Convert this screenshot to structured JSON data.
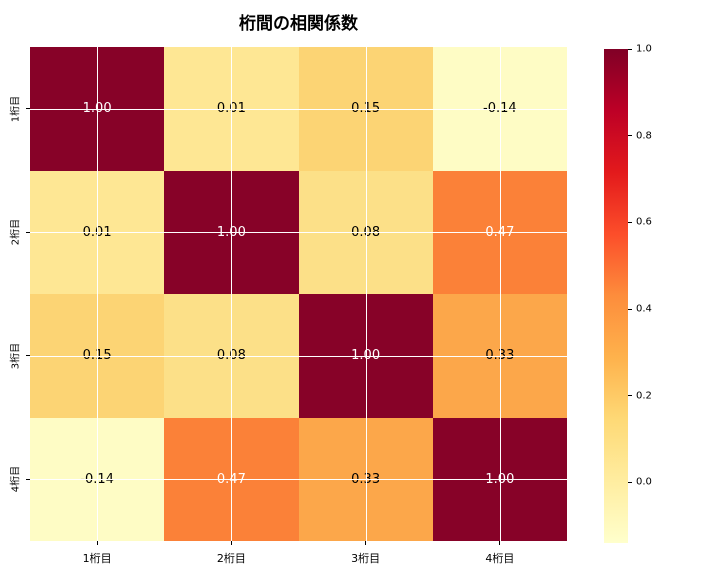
{
  "title": "桁間の相関係数",
  "chart_data": {
    "type": "heatmap",
    "title": "桁間の相関係数",
    "categories": [
      "1桁目",
      "2桁目",
      "3桁目",
      "4桁目"
    ],
    "matrix": [
      [
        1.0,
        0.01,
        0.15,
        -0.14
      ],
      [
        0.01,
        1.0,
        0.08,
        0.47
      ],
      [
        0.15,
        0.08,
        1.0,
        0.33
      ],
      [
        -0.14,
        0.47,
        0.33,
        1.0
      ]
    ],
    "cell_labels": [
      [
        "1.00",
        "0.01",
        "0.15",
        "-0.14"
      ],
      [
        "0.01",
        "1.00",
        "0.08",
        "0.47"
      ],
      [
        "0.15",
        "0.08",
        "1.00",
        "0.33"
      ],
      [
        "-0.14",
        "0.47",
        "0.33",
        "1.00"
      ]
    ],
    "cell_colors": [
      [
        "#870228",
        "#fee794",
        "#fcd474",
        "#fefcc5"
      ],
      [
        "#fee794",
        "#870228",
        "#fce088",
        "#fb8138"
      ],
      [
        "#fcd474",
        "#fce088",
        "#870228",
        "#fca74a"
      ],
      [
        "#fefcc5",
        "#fb8138",
        "#fca74a",
        "#870228"
      ]
    ],
    "cell_text_colors": [
      [
        "#ffffff",
        "#000000",
        "#000000",
        "#000000"
      ],
      [
        "#000000",
        "#ffffff",
        "#000000",
        "#ffffff"
      ],
      [
        "#000000",
        "#000000",
        "#ffffff",
        "#000000"
      ],
      [
        "#000000",
        "#ffffff",
        "#000000",
        "#ffffff"
      ]
    ],
    "colormap": "YlOrRd",
    "colormap_stops_top_to_bottom": [
      "#800026",
      "#bd0026",
      "#e31a1c",
      "#fc4e2a",
      "#fd8d3c",
      "#feb24c",
      "#fed976",
      "#ffeda0",
      "#ffffcc"
    ],
    "vmin": -0.14,
    "vmax": 1.0,
    "grid": true,
    "gridline_color": "#ffffff",
    "colorbar_ticks": [
      "1.0",
      "0.8",
      "0.6",
      "0.4",
      "0.2",
      "0.0"
    ],
    "legend_position": "right-colorbar"
  }
}
